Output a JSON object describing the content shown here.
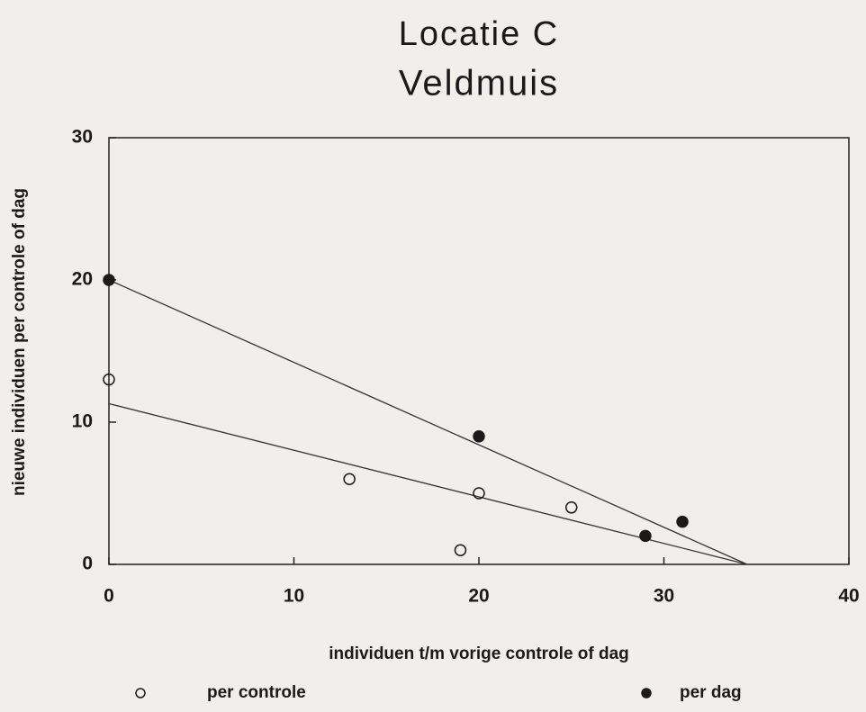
{
  "chart_data": {
    "type": "scatter",
    "title": "Locatie C",
    "subtitle": "Veldmuis",
    "x_label": "individuen t/m vorige controle of dag",
    "y_label": "nieuwe individuen per controle of dag",
    "xlim": [
      0,
      40
    ],
    "xticks": [
      0,
      10,
      20,
      30,
      40
    ],
    "ylim": [
      0,
      30
    ],
    "yticks": [
      0,
      10,
      20,
      30
    ],
    "grid": false,
    "legend": "bottom",
    "series": [
      {
        "name": "per controle",
        "color": "#1a1a1a",
        "marker": "open",
        "x": [
          0,
          13,
          19,
          20,
          25
        ],
        "values": [
          13,
          6,
          1,
          5,
          4
        ],
        "trend_x": [
          0,
          34.5
        ],
        "trend_y": [
          11.3,
          0
        ]
      },
      {
        "name": "per dag",
        "color": "#1a1a1a",
        "marker": "filled",
        "x": [
          0,
          20,
          29,
          31
        ],
        "values": [
          20,
          9,
          2,
          3
        ],
        "trend_x": [
          0,
          34.5
        ],
        "trend_y": [
          20,
          0
        ]
      }
    ]
  }
}
